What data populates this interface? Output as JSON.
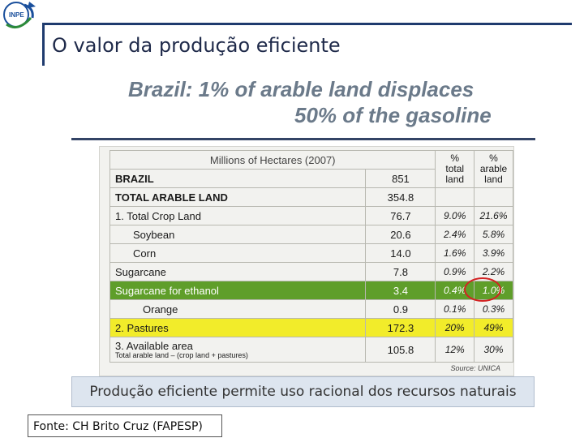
{
  "slide": {
    "title": "O valor da produção eficiente",
    "logo_text": "INPE"
  },
  "headline": {
    "line1": "Brazil: 1% of arable land displaces",
    "line2": "50% of the gasoline"
  },
  "table": {
    "header_label": "Millions of Hectares (2007)",
    "pct_total_header": "% total land",
    "pct_arable_header": "% arable land",
    "rows": [
      {
        "label": "BRAZIL",
        "value": "851",
        "pct_total": "",
        "pct_arable": ""
      },
      {
        "label": "TOTAL ARABLE LAND",
        "value": "354.8",
        "pct_total": "",
        "pct_arable": ""
      },
      {
        "label": "1. Total Crop Land",
        "value": "76.7",
        "pct_total": "9.0%",
        "pct_arable": "21.6%"
      },
      {
        "label": "Soybean",
        "value": "20.6",
        "pct_total": "2.4%",
        "pct_arable": "5.8%"
      },
      {
        "label": "Corn",
        "value": "14.0",
        "pct_total": "1.6%",
        "pct_arable": "3.9%"
      },
      {
        "label": "Sugarcane",
        "value": "7.8",
        "pct_total": "0.9%",
        "pct_arable": "2.2%"
      },
      {
        "label": "Sugarcane for ethanol",
        "value": "3.4",
        "pct_total": "0.4%",
        "pct_arable": "1.0%"
      },
      {
        "label": "Orange",
        "value": "0.9",
        "pct_total": "0.1%",
        "pct_arable": "0.3%"
      },
      {
        "label": "2. Pastures",
        "value": "172.3",
        "pct_total": "20%",
        "pct_arable": "49%"
      },
      {
        "label": "3. Available area",
        "sublabel": "Total arable land – (crop land + pastures)",
        "value": "105.8",
        "pct_total": "12%",
        "pct_arable": "30%"
      }
    ],
    "source": "Source: UNICA",
    "highlight_colors": {
      "green": "#5f9e2a",
      "yellow": "#f2ec2a",
      "circle": "#d32222"
    }
  },
  "caption": "Produção eficiente permite uso racional dos recursos naturais",
  "footer": "Fonte: CH Brito Cruz (FAPESP)"
}
